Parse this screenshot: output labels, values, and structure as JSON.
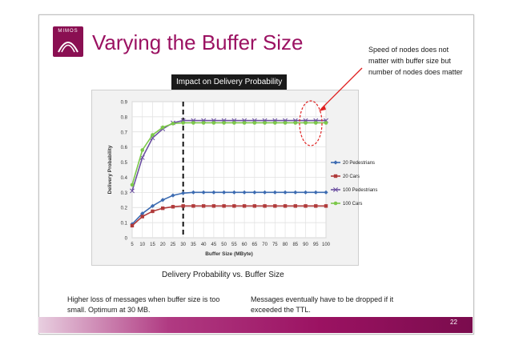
{
  "slide": {
    "logo_text": "MIMOS",
    "title": "Varying the Buffer Size",
    "callout_top": "Impact on Delivery Probability",
    "note_right": "Speed of nodes does not matter with buffer size but number of nodes does matter",
    "caption": "Delivery Probability vs. Buffer Size",
    "note_left": "Higher loss of messages when buffer size is too small. Optimum at 30 MB.",
    "note_mid": "Messages eventually have to be dropped if it exceeded the TTL.",
    "page_number": "22"
  },
  "colors": {
    "accent": "#9b1262",
    "series_20_pedestrians": "#3c6bb1",
    "series_20_cars": "#b03a3a",
    "series_100_pedestrians": "#6b4fa0",
    "series_100_cars": "#7cc84a",
    "annotation_red": "#e02020"
  },
  "chart_data": {
    "type": "line",
    "title": "",
    "xlabel": "Buffer Size (MByte)",
    "ylabel": "Delivery Probability",
    "x": [
      5,
      10,
      15,
      20,
      25,
      30,
      35,
      40,
      45,
      50,
      55,
      60,
      65,
      70,
      75,
      80,
      85,
      90,
      95,
      100
    ],
    "xlim": [
      5,
      100
    ],
    "ylim": [
      0,
      0.9
    ],
    "yticks": [
      "0",
      "0.1",
      "0.2",
      "0.3",
      "0.4",
      "0.5",
      "0.6",
      "0.7",
      "0.8",
      "0.9"
    ],
    "xticks": [
      "5",
      "10",
      "15",
      "20",
      "25",
      "30",
      "35",
      "40",
      "45",
      "50",
      "55",
      "60",
      "65",
      "70",
      "75",
      "80",
      "85",
      "90",
      "95",
      "100"
    ],
    "grid": true,
    "legend_position": "right",
    "vertical_marker_x": 30,
    "series": [
      {
        "name": "20 Pedestrians",
        "marker": "diamond",
        "values": [
          0.09,
          0.16,
          0.21,
          0.25,
          0.28,
          0.295,
          0.3,
          0.3,
          0.3,
          0.3,
          0.3,
          0.3,
          0.3,
          0.3,
          0.3,
          0.3,
          0.3,
          0.3,
          0.3,
          0.3
        ]
      },
      {
        "name": "20 Cars",
        "marker": "square",
        "values": [
          0.08,
          0.14,
          0.175,
          0.195,
          0.205,
          0.21,
          0.21,
          0.21,
          0.21,
          0.21,
          0.21,
          0.21,
          0.21,
          0.21,
          0.21,
          0.21,
          0.21,
          0.21,
          0.21,
          0.21
        ]
      },
      {
        "name": "100 Pedestrians",
        "marker": "x",
        "values": [
          0.31,
          0.53,
          0.66,
          0.72,
          0.76,
          0.775,
          0.775,
          0.775,
          0.775,
          0.775,
          0.775,
          0.775,
          0.775,
          0.775,
          0.775,
          0.775,
          0.775,
          0.775,
          0.775,
          0.775
        ]
      },
      {
        "name": "100 Cars",
        "marker": "circle",
        "values": [
          0.35,
          0.58,
          0.68,
          0.73,
          0.755,
          0.76,
          0.76,
          0.76,
          0.76,
          0.76,
          0.76,
          0.76,
          0.76,
          0.76,
          0.76,
          0.76,
          0.76,
          0.76,
          0.76,
          0.76
        ]
      }
    ]
  }
}
